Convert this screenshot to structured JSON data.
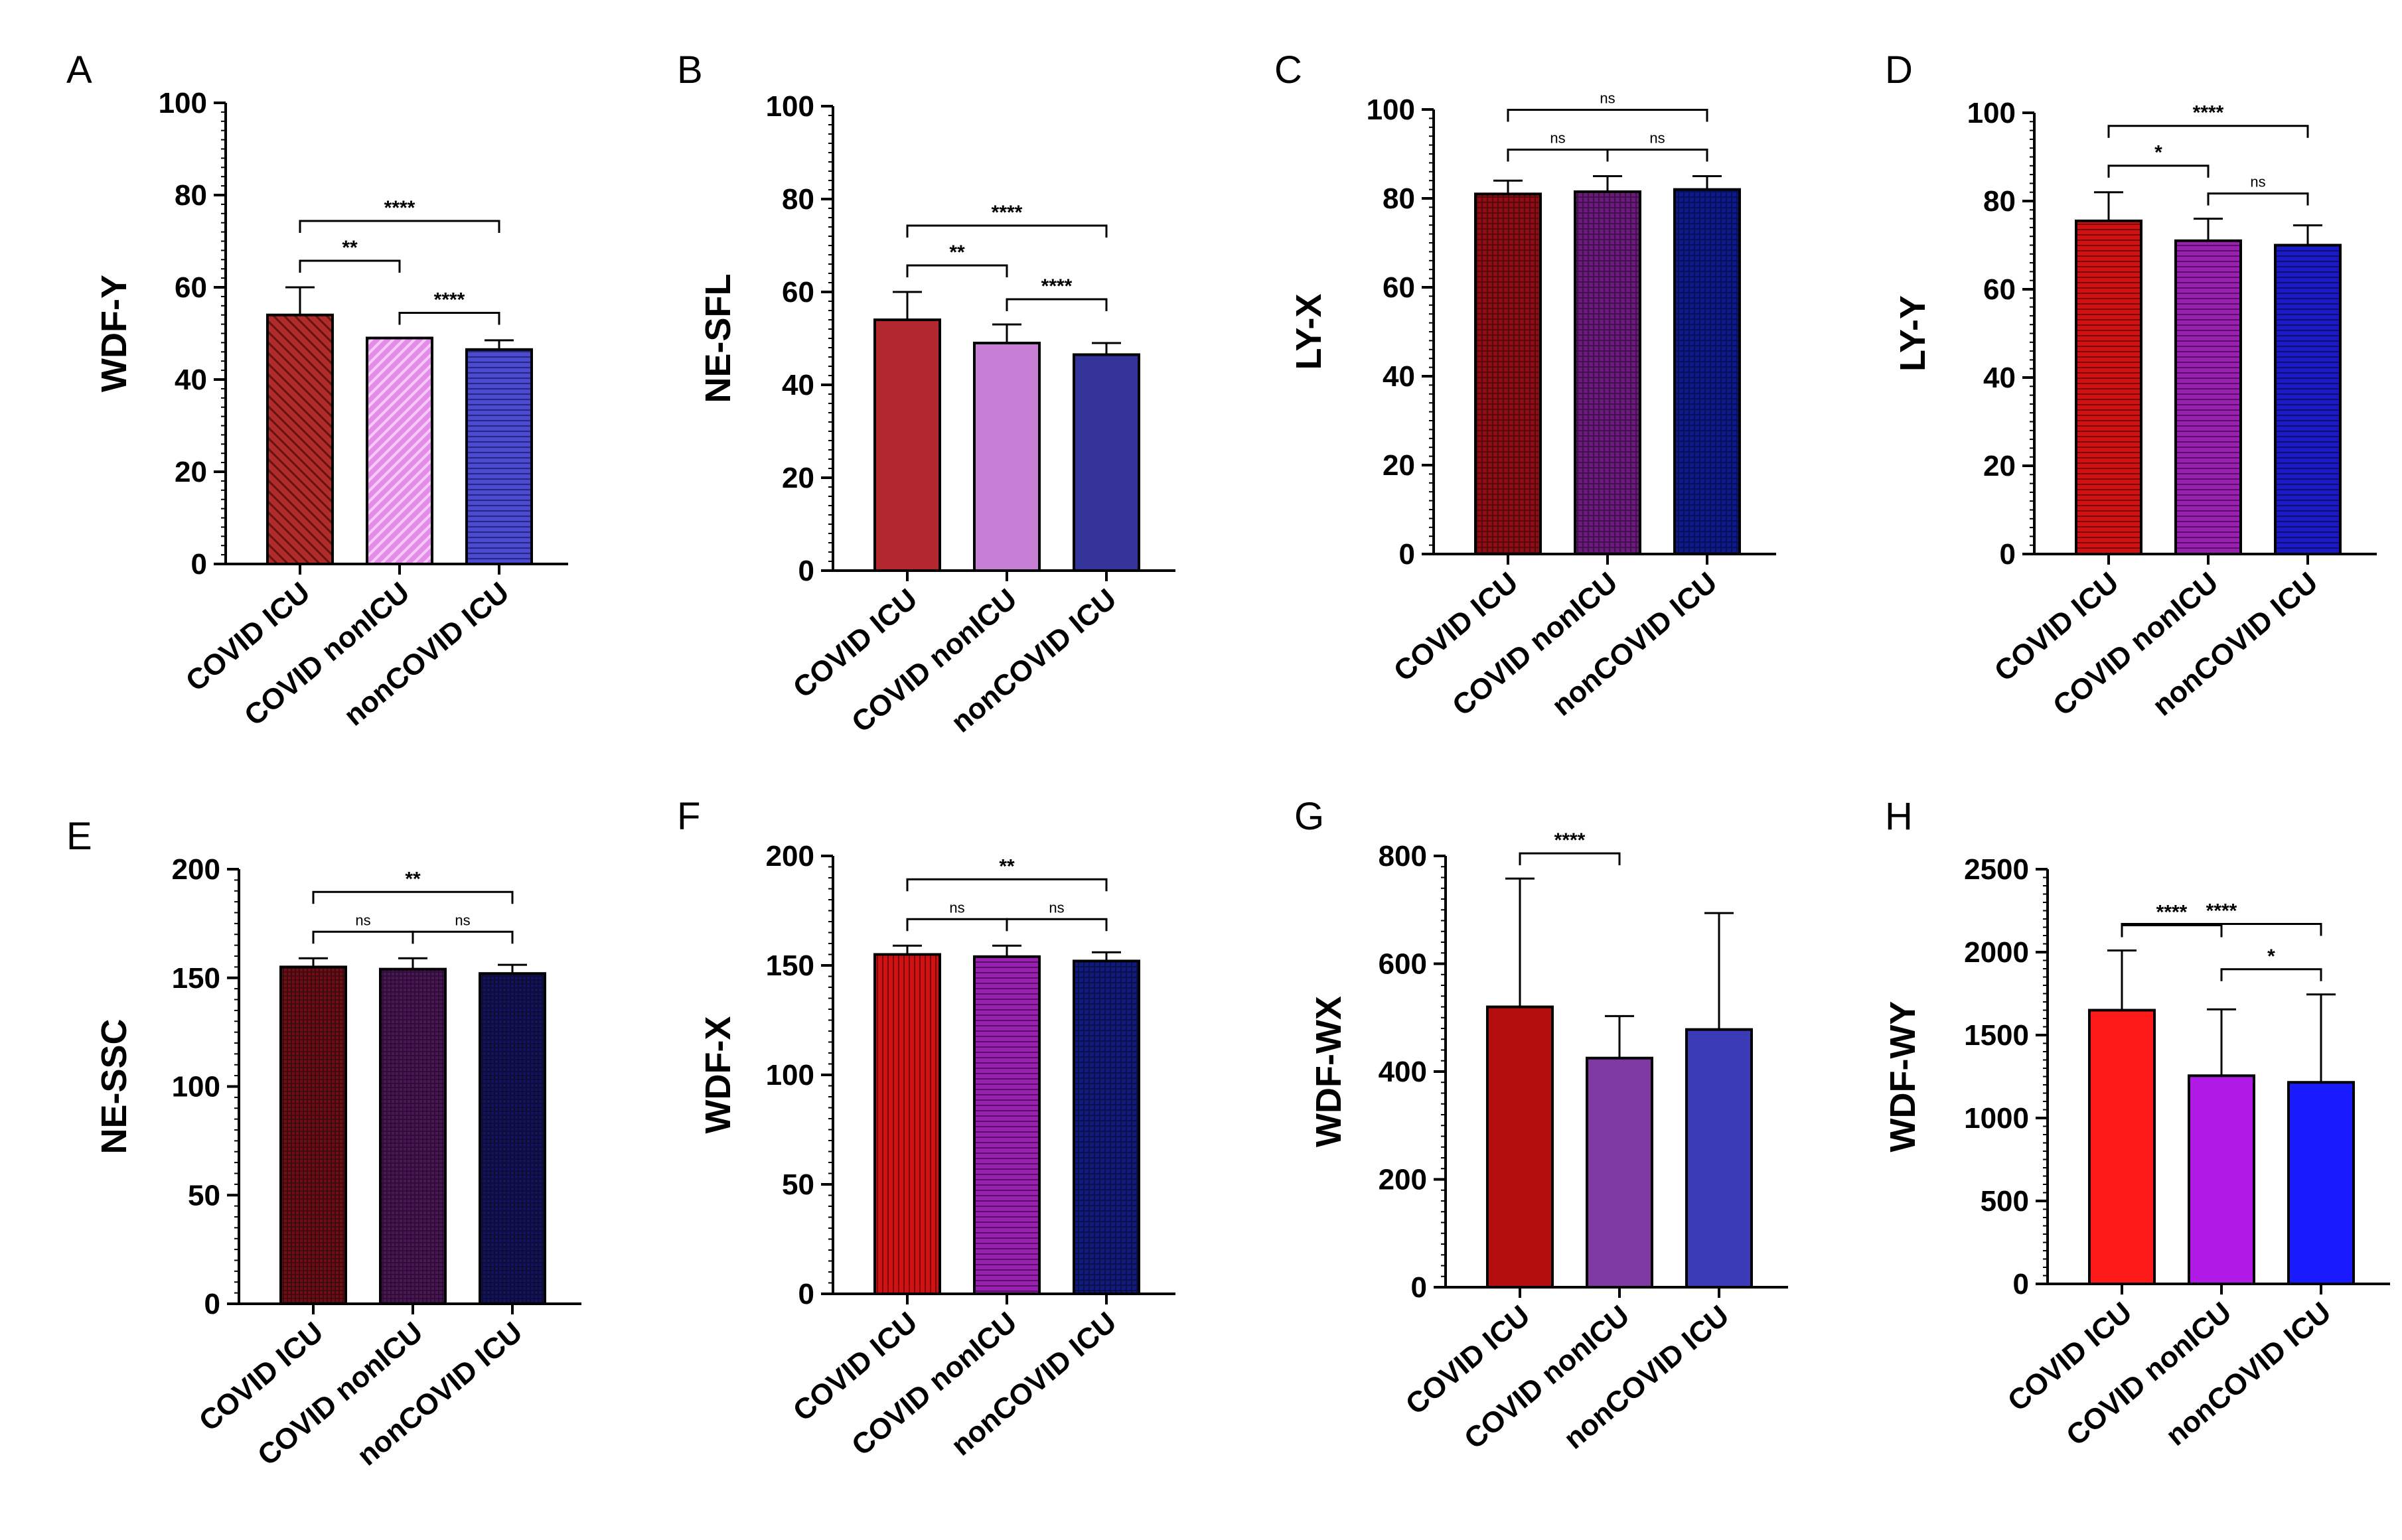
{
  "figure": {
    "background": "#ffffff",
    "categories": [
      "COVID ICU",
      "COVID nonICU",
      "nonCOVID ICU"
    ]
  },
  "chart_data": [
    {
      "panel": "A",
      "type": "bar",
      "ylabel": "WDF-Y",
      "ylim": [
        0,
        100
      ],
      "yticks": [
        0,
        20,
        40,
        60,
        80,
        100
      ],
      "categories": [
        "COVID ICU",
        "COVID nonICU",
        "nonCOVID ICU"
      ],
      "values": [
        54,
        49,
        46.5
      ],
      "errors": [
        6,
        0,
        2
      ],
      "colors": [
        "#b22a2a",
        "#e58ae8",
        "#4a4ad6"
      ],
      "patterns": [
        "diag-back",
        "diag-fwd",
        "hlines"
      ],
      "significance": [
        {
          "from": 0,
          "to": 1,
          "label": "**",
          "level": 1
        },
        {
          "from": 0,
          "to": 2,
          "label": "****",
          "level": 2
        },
        {
          "from": 1,
          "to": 2,
          "label": "****",
          "level": 0
        }
      ]
    },
    {
      "panel": "B",
      "type": "bar",
      "ylabel": "NE-SFL",
      "ylim": [
        0,
        100
      ],
      "yticks": [
        0,
        20,
        40,
        60,
        80,
        100
      ],
      "categories": [
        "COVID ICU",
        "COVID nonICU",
        "nonCOVID ICU"
      ],
      "values": [
        54,
        49,
        46.5
      ],
      "errors": [
        6,
        4,
        2.5
      ],
      "colors": [
        "#b3282e",
        "#c77fd6",
        "#33339a"
      ],
      "patterns": [
        "solid",
        "solid",
        "solid"
      ],
      "significance": [
        {
          "from": 0,
          "to": 1,
          "label": "**",
          "level": 1
        },
        {
          "from": 0,
          "to": 2,
          "label": "****",
          "level": 2
        },
        {
          "from": 1,
          "to": 2,
          "label": "****",
          "level": 0
        }
      ]
    },
    {
      "panel": "C",
      "type": "bar",
      "ylabel": "LY-X",
      "ylim": [
        0,
        100
      ],
      "yticks": [
        0,
        20,
        40,
        60,
        80,
        100
      ],
      "categories": [
        "COVID ICU",
        "COVID nonICU",
        "nonCOVID ICU"
      ],
      "values": [
        81,
        81.5,
        82
      ],
      "errors": [
        3,
        3.5,
        3
      ],
      "colors": [
        "#8c0d14",
        "#6a1a7a",
        "#0c1a8c"
      ],
      "patterns": [
        "grid",
        "grid",
        "grid"
      ],
      "significance": [
        {
          "from": 0,
          "to": 1,
          "label": "ns",
          "level": 1
        },
        {
          "from": 1,
          "to": 2,
          "label": "ns",
          "level": 1
        },
        {
          "from": 0,
          "to": 2,
          "label": "ns",
          "level": 2
        }
      ]
    },
    {
      "panel": "D",
      "type": "bar",
      "ylabel": "LY-Y",
      "ylim": [
        0,
        100
      ],
      "yticks": [
        0,
        20,
        40,
        60,
        80,
        100
      ],
      "categories": [
        "COVID ICU",
        "COVID nonICU",
        "nonCOVID ICU"
      ],
      "values": [
        75.5,
        71,
        70
      ],
      "errors": [
        6.5,
        5,
        4.5
      ],
      "colors": [
        "#d11111",
        "#9b1fb3",
        "#1a1ac9"
      ],
      "patterns": [
        "hlines",
        "hlines",
        "hlines"
      ],
      "significance": [
        {
          "from": 0,
          "to": 1,
          "label": "*",
          "level": 1
        },
        {
          "from": 1,
          "to": 2,
          "label": "ns",
          "level": 0
        },
        {
          "from": 0,
          "to": 2,
          "label": "****",
          "level": 2
        }
      ]
    },
    {
      "panel": "E",
      "type": "bar",
      "ylabel": "NE-SSC",
      "ylim": [
        0,
        200
      ],
      "yticks": [
        0,
        50,
        100,
        150,
        200
      ],
      "categories": [
        "COVID ICU",
        "COVID nonICU",
        "nonCOVID ICU"
      ],
      "values": [
        155,
        154,
        152
      ],
      "errors": [
        4,
        5,
        4
      ],
      "colors": [
        "#6b0e16",
        "#4a1656",
        "#14145c"
      ],
      "patterns": [
        "fine-grid",
        "fine-grid",
        "fine-grid"
      ],
      "significance": [
        {
          "from": 0,
          "to": 1,
          "label": "ns",
          "level": 1
        },
        {
          "from": 1,
          "to": 2,
          "label": "ns",
          "level": 1
        },
        {
          "from": 0,
          "to": 2,
          "label": "**",
          "level": 2
        }
      ]
    },
    {
      "panel": "F",
      "type": "bar",
      "ylabel": "WDF-X",
      "ylim": [
        0,
        200
      ],
      "yticks": [
        0,
        50,
        100,
        150,
        200
      ],
      "categories": [
        "COVID ICU",
        "COVID nonICU",
        "nonCOVID ICU"
      ],
      "values": [
        155,
        154,
        152
      ],
      "errors": [
        4,
        5,
        4
      ],
      "colors": [
        "#d11111",
        "#9b1fb3",
        "#101a7a"
      ],
      "patterns": [
        "vlines",
        "hlines",
        "grid"
      ],
      "significance": [
        {
          "from": 0,
          "to": 1,
          "label": "ns",
          "level": 1
        },
        {
          "from": 1,
          "to": 2,
          "label": "ns",
          "level": 1
        },
        {
          "from": 0,
          "to": 2,
          "label": "**",
          "level": 2
        }
      ]
    },
    {
      "panel": "G",
      "type": "bar",
      "ylabel": "WDF-WX",
      "ylim": [
        0,
        800
      ],
      "yticks": [
        0,
        200,
        400,
        600,
        800
      ],
      "categories": [
        "COVID ICU",
        "COVID nonICU",
        "nonCOVID ICU"
      ],
      "values": [
        520,
        425,
        478
      ],
      "errors": [
        238,
        78,
        216
      ],
      "colors": [
        "#b30d0d",
        "#7e3aa0",
        "#3b3bb7"
      ],
      "patterns": [
        "solid",
        "solid",
        "solid"
      ],
      "significance": [
        {
          "from": 0,
          "to": 1,
          "label": "****",
          "level": 0
        }
      ]
    },
    {
      "panel": "H",
      "type": "bar",
      "ylabel": "WDF-WY",
      "ylim": [
        0,
        2500
      ],
      "yticks": [
        0,
        500,
        1000,
        1500,
        2000,
        2500
      ],
      "categories": [
        "COVID ICU",
        "COVID nonICU",
        "nonCOVID ICU"
      ],
      "values": [
        1650,
        1255,
        1215
      ],
      "errors": [
        360,
        400,
        530
      ],
      "colors": [
        "#ff1a1a",
        "#b11ae6",
        "#1a1aff"
      ],
      "patterns": [
        "solid",
        "solid",
        "solid"
      ],
      "significance": [
        {
          "from": 0,
          "to": 1,
          "label": "****",
          "level": 0
        },
        {
          "from": 1,
          "to": 2,
          "label": "*",
          "level": 0
        },
        {
          "from": 0,
          "to": 2,
          "label": "****",
          "level": 1
        }
      ]
    }
  ]
}
